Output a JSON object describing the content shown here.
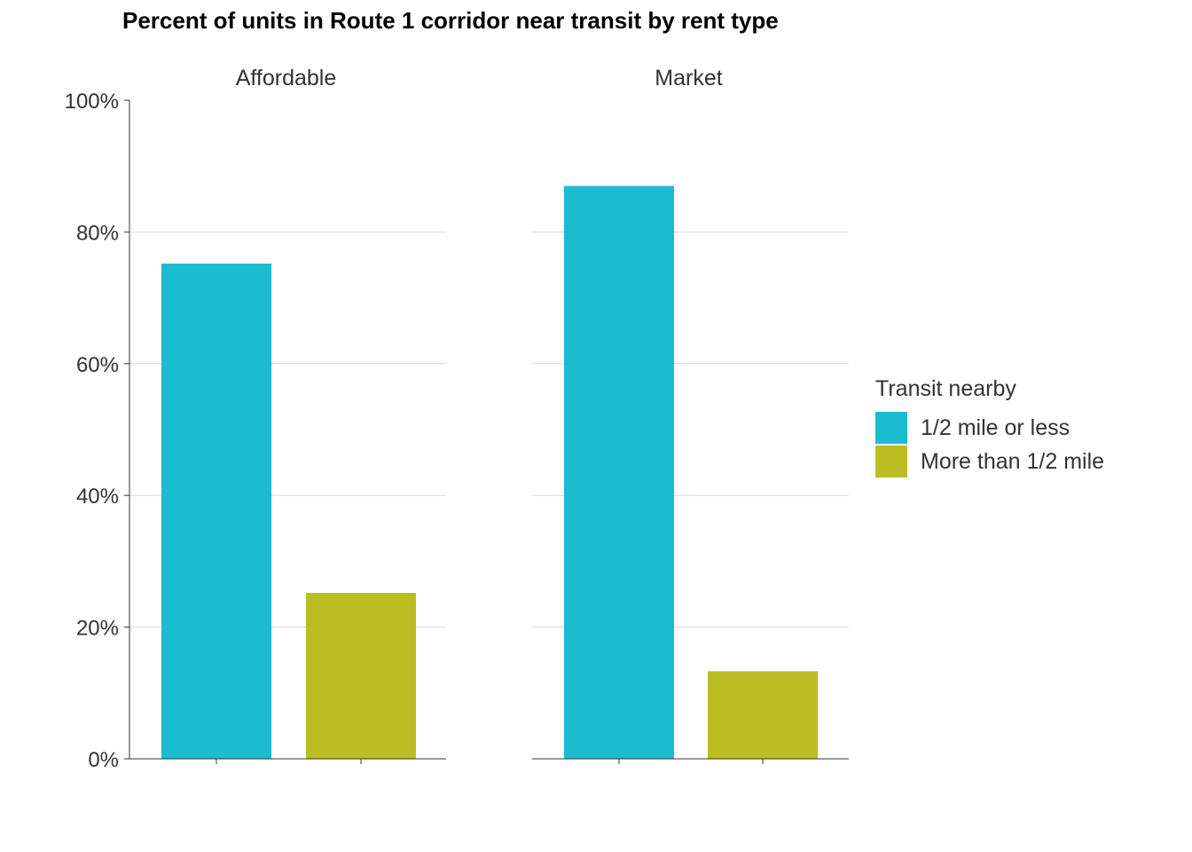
{
  "chart_data": {
    "type": "bar",
    "title": "Percent of units in Route 1 corridor near transit by rent type",
    "facets": [
      "Affordable",
      "Market"
    ],
    "series": [
      {
        "name": "1/2 mile or less",
        "values": [
          75.2,
          87.0
        ]
      },
      {
        "name": "More than 1/2 mile",
        "values": [
          25.2,
          13.3
        ]
      }
    ],
    "ylim": [
      0,
      100
    ],
    "yticks": [
      0,
      20,
      40,
      60,
      80,
      100
    ],
    "ytick_labels": [
      "0%",
      "20%",
      "40%",
      "60%",
      "80%",
      "100%"
    ],
    "grid": "horizontal",
    "legend": {
      "title": "Transit nearby",
      "position": "right"
    },
    "colors": [
      "#1BBCD0",
      "#BCBD22"
    ]
  }
}
